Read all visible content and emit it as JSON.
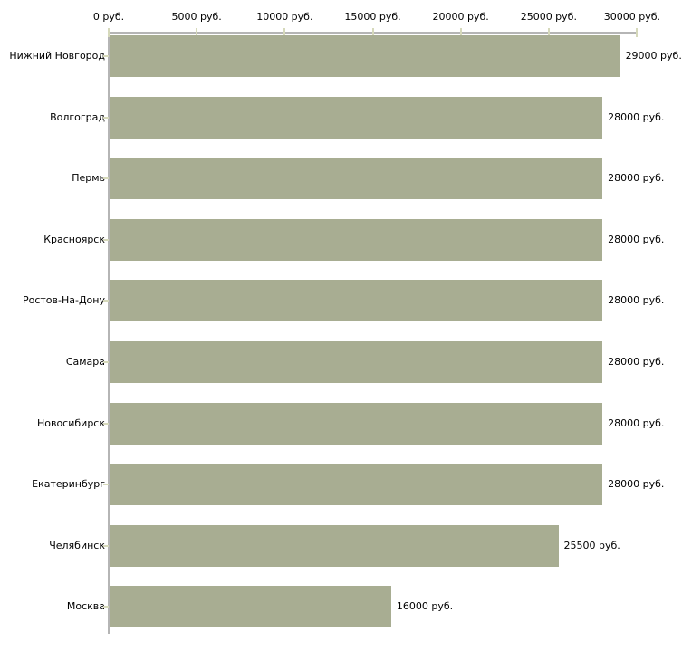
{
  "chart_data": {
    "type": "bar",
    "orientation": "horizontal",
    "categories": [
      "Нижний Новгород",
      "Волгоград",
      "Пермь",
      "Красноярск",
      "Ростов-На-Дону",
      "Самара",
      "Новосибирск",
      "Екатеринбург",
      "Челябинск",
      "Москва"
    ],
    "values": [
      29000,
      28000,
      28000,
      28000,
      28000,
      28000,
      28000,
      28000,
      25500,
      16000
    ],
    "value_labels": [
      "29000 руб.",
      "28000 руб.",
      "28000 руб.",
      "28000 руб.",
      "28000 руб.",
      "28000 руб.",
      "28000 руб.",
      "28000 руб.",
      "25500 руб.",
      "16000 руб."
    ],
    "x_ticks": [
      {
        "value": 0,
        "label": "0 руб."
      },
      {
        "value": 5000,
        "label": "5000 руб."
      },
      {
        "value": 10000,
        "label": "10000 руб."
      },
      {
        "value": 15000,
        "label": "15000 руб."
      },
      {
        "value": 20000,
        "label": "20000 руб."
      },
      {
        "value": 25000,
        "label": "25000 руб."
      },
      {
        "value": 30000,
        "label": "30000 руб."
      }
    ],
    "xlim": [
      0,
      30000
    ],
    "unit": "руб.",
    "grid": false,
    "legend": false,
    "axis_position": "top",
    "colors": {
      "bar": "#a8ad92",
      "tick": "#d6d9bb",
      "axis": "#b5b5b5",
      "text": "#000000",
      "background": "#ffffff"
    }
  }
}
